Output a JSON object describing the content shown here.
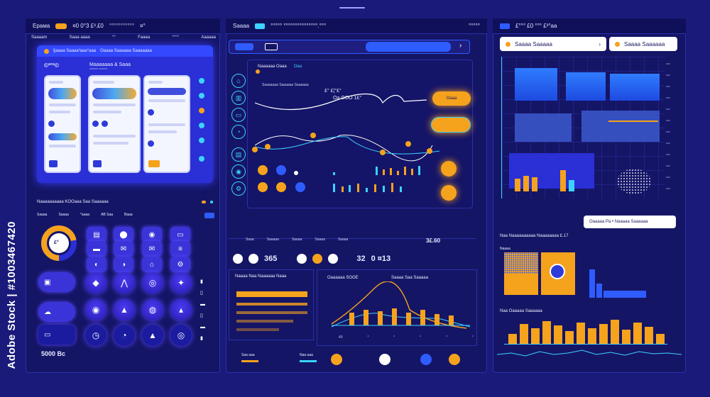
{
  "watermark": "Adobe Stock | #1003467420",
  "left": {
    "topbar": {
      "title": "Ерама",
      "badge": "",
      "value": "¤0 0°3 £³.£0",
      "extra": "°°°°°°°°°°°",
      "mark": "¤°"
    },
    "tabs": [
      "Saaaam",
      "Saaa aaaa",
      "°°",
      "Faaaa",
      "°°°°",
      "Aaaaaa"
    ],
    "hero": {
      "header": "§aaaa Saaaa³aaa°aaa",
      "sub": "Oaaaa Saaaaaa Saaaaaaa",
      "title": "©ª°ª©",
      "subtitle": "Maaaaaaa & Saaa",
      "sub2": "°°°°°° °°°°°°"
    },
    "widget_header": "Naaaaaaaaaa KOOaaa Saa Saaaaaa",
    "widget_tabs": [
      "Saaaa",
      "Saaaa",
      "°aaaa",
      "AB Saa",
      "Baaa"
    ],
    "gauge_label": "£°",
    "bottom_value": "5000 Bc"
  },
  "middle": {
    "topbar": {
      "title": "Saaaa",
      "badge": "",
      "value": "°°°°° °°°°°°°°°°°°°°°.°°°",
      "right": "°°°°°"
    },
    "chart_header": "Naaaaaa Oaaa",
    "chart_tag": "Oaa",
    "chart_sub": "Saaaaaaa Saaaaaa Saaaaaa",
    "readout_1": "£° £¦°£°",
    "readout_2": "Oa OOO 1£°",
    "callout_value": "Oaaa",
    "ticker": {
      "v1": "365",
      "v2": "0 ¤13",
      "v3": "3£.60",
      "v4": "32"
    },
    "ticker_labels": [
      "Saaa",
      "Saaaaa",
      "Saaaa",
      "Saaaa",
      "Saaaa"
    ],
    "funnel_header": "Naaaa Naa Naaaaaa Naaa",
    "area_header": "Oaaaaaa  SOOE",
    "area_sub": "Saaaa Saa Saaaaa",
    "axis_ticks": [
      "40",
      "°",
      "°",
      "°",
      "°",
      "°",
      "°"
    ],
    "bottom_labels": [
      "Saa aaa",
      "Naa aaa"
    ]
  },
  "right": {
    "topbar": {
      "title": "£°°° £0 °°° £³°aa"
    },
    "pill_1": "Saaaa Saaaaa",
    "pill_2": "Saaaa Saaaaaa",
    "pill_3": "Oaaaaa Pa  •  Naaaaa Saaaaaa",
    "section_1": "Naa Naaaaaaaaaa Naaaaaaaa £.17",
    "mini_label": "Naaaa",
    "section_2": "Naa Oaaaaa Saaaaaa"
  },
  "colors": {
    "bg": "#1a1a7a",
    "panel": "#151566",
    "orange": "#f5a21d",
    "cyan": "#3bd3ff",
    "blue": "#2f5cff",
    "white": "#ffffff"
  }
}
